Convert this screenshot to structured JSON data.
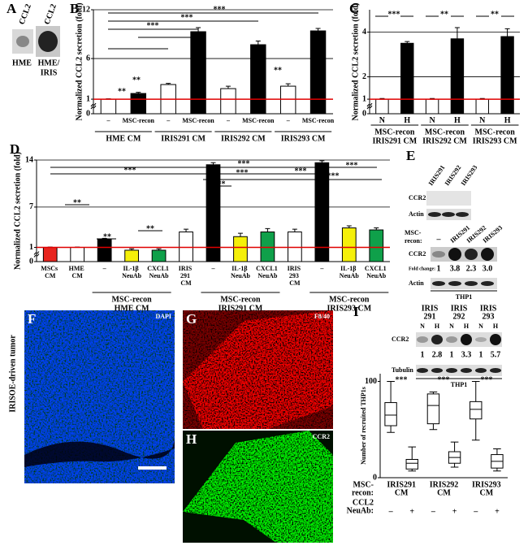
{
  "chart_data": [
    {
      "type": "bar",
      "panel": "B",
      "y_label": "Normalized CCL2 secretion (fold)",
      "categories": [
        "–",
        "MSC-recon",
        "–",
        "MSC-recon",
        "–",
        "MSC-recon",
        "–",
        "MSC-recon"
      ],
      "groups": [
        [
          "HME CM"
        ],
        [
          "IRIS291 CM"
        ],
        [
          "IRIS292 CM"
        ],
        [
          "IRIS293 CM"
        ]
      ],
      "values": [
        1,
        1.7,
        2.8,
        9.3,
        2.3,
        7.7,
        2.6,
        9.4
      ],
      "errors": [
        0.05,
        0.15,
        0.15,
        0.5,
        0.3,
        0.45,
        0.3,
        0.3
      ],
      "colors": [
        "#ffffff",
        "#000000",
        "#ffffff",
        "#000000",
        "#ffffff",
        "#000000",
        "#ffffff",
        "#000000"
      ],
      "ylim": [
        0,
        12
      ],
      "yticks": [
        0,
        1,
        6,
        12
      ],
      "axis_break": true,
      "grid": true,
      "reference_line": 1,
      "reference_color": "#e00000",
      "annotations": [
        "**",
        "**",
        "***",
        "***",
        "***",
        "**",
        "**"
      ]
    },
    {
      "type": "bar",
      "panel": "C",
      "y_label": "Normalized CCL2 secretion (fold)",
      "categories": [
        "N",
        "H",
        "N",
        "H",
        "N",
        "H"
      ],
      "groups": [
        [
          "MSC-recon",
          "IRIS291 CM"
        ],
        [
          "MSC-recon",
          "IRIS292 CM"
        ],
        [
          "MSC-recon",
          "IRIS293 CM"
        ]
      ],
      "values": [
        1,
        3.5,
        1,
        3.7,
        1,
        3.8
      ],
      "errors": [
        0.03,
        0.08,
        0.03,
        0.5,
        0.03,
        0.35
      ],
      "colors": [
        "#ffffff",
        "#000000",
        "#ffffff",
        "#000000",
        "#ffffff",
        "#000000"
      ],
      "ylim": [
        0,
        5
      ],
      "yticks": [
        0,
        1,
        2,
        4
      ],
      "axis_break": true,
      "grid": true,
      "reference_line": 1,
      "reference_color": "#e00000",
      "annotations": [
        "***",
        "**",
        "**"
      ]
    },
    {
      "type": "bar",
      "panel": "D",
      "y_label": "Normalized CCL2 secretion (fold)",
      "categories": [
        "MSCs CM",
        "HME CM",
        "–",
        "IL-1β NeuAb",
        "CXCL1 NeuAb",
        "IRIS 291 CM",
        "–",
        "IL-1β NeuAb",
        "CXCL1 NeuAb",
        "IRIS 293 CM",
        "–",
        "IL-1β NeuAb",
        "CXCL1 NeuAb"
      ],
      "groups": [
        [
          "MSC-recon",
          "HME CM"
        ],
        [
          "MSC-recon",
          "IRIS291 CM"
        ],
        [
          "MSC-recon",
          "IRIS293 CM"
        ]
      ],
      "values": [
        1,
        1,
        2.2,
        0.8,
        0.8,
        3.3,
        13.3,
        2.6,
        3.3,
        3.3,
        13.6,
        3.9,
        3.6
      ],
      "errors": [
        0.05,
        0.05,
        0.15,
        0.1,
        0.1,
        0.4,
        0.3,
        0.5,
        0.5,
        0.4,
        0.3,
        0.3,
        0.3
      ],
      "colors": [
        "#e8251f",
        "#ffffff",
        "#000000",
        "#f5f00a",
        "#0fa04a",
        "#ffffff",
        "#000000",
        "#f5f00a",
        "#0fa04a",
        "#ffffff",
        "#000000",
        "#f5f00a",
        "#0fa04a"
      ],
      "ylim": [
        0,
        14
      ],
      "yticks": [
        0,
        1,
        7,
        14
      ],
      "axis_break": true,
      "grid": true,
      "reference_line": 1,
      "reference_color": "#e00000",
      "annotations": [
        "***",
        "***",
        "**",
        "**",
        "**",
        "***",
        "***",
        "***",
        "***",
        "***"
      ]
    },
    {
      "type": "box",
      "panel": "I",
      "y_label": "Number of recruited THP1s",
      "row_labels": [
        [
          "MSC-",
          "recon:"
        ],
        [
          "CCL2",
          "NeuAb:"
        ]
      ],
      "groups": [
        [
          "IRIS291",
          "CM"
        ],
        [
          "IRIS292",
          "CM"
        ],
        [
          "IRIS293",
          "CM"
        ]
      ],
      "categories": [
        "–",
        "+",
        "–",
        "+",
        "–",
        "+"
      ],
      "whisker_low": [
        47,
        7,
        50,
        11,
        39,
        7
      ],
      "q1": [
        54,
        9,
        56,
        15,
        61,
        10
      ],
      "median": [
        65,
        15,
        75,
        21,
        71,
        17
      ],
      "q3": [
        78,
        19,
        87,
        27,
        79,
        24
      ],
      "whisker_high": [
        100,
        32,
        89,
        37,
        100,
        30
      ],
      "color": "#000000",
      "ylim": [
        0,
        108
      ],
      "yticks": [
        0,
        100
      ],
      "annotations": [
        "***",
        "***",
        "***"
      ]
    }
  ],
  "panel_a": {
    "letter": "A",
    "antibody": [
      "CCL2",
      "CCL2"
    ],
    "sample_labels": [
      [
        "HME"
      ],
      [
        "HME/",
        "IRIS"
      ]
    ]
  },
  "panel_e": {
    "letter": "E",
    "blot1": {
      "lanes": [
        "IRIS291",
        "IRIS292",
        "IRIS293"
      ],
      "rows": [
        "CCR2",
        "Actin"
      ]
    },
    "blot2": {
      "treatment_label": [
        "MSC-",
        "recon:"
      ],
      "lanes": [
        "–",
        "IRIS291",
        "IRIS292",
        "IRIS293"
      ],
      "rows": [
        "CCR2",
        "Actin"
      ],
      "fold_label": "Fold change:",
      "fold_changes": [
        "1",
        "3.8",
        "2.3",
        "3.0"
      ],
      "cell": "THP1"
    },
    "blot3": {
      "groups": [
        [
          "IRIS",
          "291"
        ],
        [
          "IRIS",
          "292"
        ],
        [
          "IRIS",
          "293"
        ]
      ],
      "lanes": [
        "N",
        "H",
        "N",
        "H",
        "N",
        "H"
      ],
      "rows": [
        "CCR2",
        "Tubulin"
      ],
      "fold_changes": [
        "1",
        "2.8",
        "1",
        "3.3",
        "1",
        "5.7"
      ],
      "cell": "THP1"
    }
  },
  "panel_f": {
    "letter": "F",
    "stain": "DAPI",
    "tissue": "IRISOE-driven tumor"
  },
  "panel_g": {
    "letter": "G",
    "stain": "F8/40"
  },
  "panel_h": {
    "letter": "H",
    "stain": "CCR2"
  }
}
